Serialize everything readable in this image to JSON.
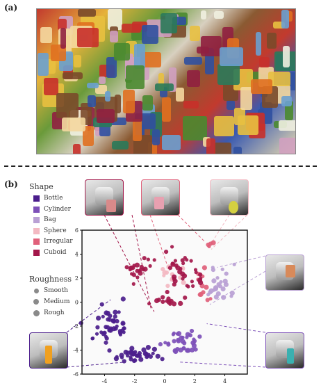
{
  "panels": {
    "a": "(a)",
    "b": "(b)"
  },
  "legend": {
    "shape_title": "Shape",
    "shapes": [
      {
        "name": "Bottle",
        "color": "#4b1e8c"
      },
      {
        "name": "Cylinder",
        "color": "#7d50b8"
      },
      {
        "name": "Bag",
        "color": "#b9a0d4"
      },
      {
        "name": "Sphere",
        "color": "#f3b9c2"
      },
      {
        "name": "Irregular",
        "color": "#e0607a"
      },
      {
        "name": "Cuboid",
        "color": "#a3174a"
      }
    ],
    "rough_title": "Roughness",
    "roughness": [
      "Smooth",
      "Medium",
      "Rough"
    ]
  },
  "chart_data": {
    "type": "scatter",
    "title": "",
    "xlabel": "",
    "ylabel": "",
    "xlim": [
      -5.5,
      5.5
    ],
    "ylim": [
      -6,
      6
    ],
    "xticks": [
      -4,
      -2,
      0,
      2,
      4
    ],
    "yticks": [
      -6,
      -4,
      -2,
      0,
      2,
      4,
      6
    ],
    "xtick_labels": [
      "-4",
      "-2",
      "0",
      "2",
      "4"
    ],
    "ytick_labels": [
      "-6",
      "-4",
      "-2",
      "0",
      "2",
      "4",
      "6"
    ],
    "grid": false,
    "series": [
      {
        "name": "Bottle",
        "color": "#4b1e8c",
        "clusters": [
          {
            "cx": -3.6,
            "cy": -1.7,
            "rx": 0.9,
            "ry": 1.3,
            "n": 45
          },
          {
            "cx": -1.9,
            "cy": -4.3,
            "rx": 1.2,
            "ry": 0.7,
            "n": 40
          }
        ]
      },
      {
        "name": "Cylinder",
        "color": "#7d50b8",
        "clusters": [
          {
            "cx": 1.1,
            "cy": -3.4,
            "rx": 1.0,
            "ry": 0.9,
            "n": 35
          }
        ]
      },
      {
        "name": "Bag",
        "color": "#b9a0d4",
        "clusters": [
          {
            "cx": 3.6,
            "cy": 1.3,
            "rx": 0.9,
            "ry": 1.2,
            "n": 25
          }
        ]
      },
      {
        "name": "Sphere",
        "color": "#f3b9c2",
        "clusters": [
          {
            "cx": 0.6,
            "cy": 2.4,
            "rx": 0.9,
            "ry": 1.0,
            "n": 12
          }
        ]
      },
      {
        "name": "Irregular",
        "color": "#e0607a",
        "clusters": [
          {
            "cx": 2.5,
            "cy": 1.0,
            "rx": 0.9,
            "ry": 1.3,
            "n": 12
          },
          {
            "cx": 2.9,
            "cy": 4.8,
            "rx": 0.3,
            "ry": 0.2,
            "n": 4
          }
        ]
      },
      {
        "name": "Cuboid",
        "color": "#a3174a",
        "clusters": [
          {
            "cx": -1.7,
            "cy": 2.7,
            "rx": 0.8,
            "ry": 0.9,
            "n": 22
          },
          {
            "cx": 1.2,
            "cy": 2.3,
            "rx": 1.2,
            "ry": 1.6,
            "n": 35
          },
          {
            "cx": 0.0,
            "cy": 0.2,
            "rx": 1.0,
            "ry": 0.4,
            "n": 12
          }
        ]
      }
    ]
  }
}
